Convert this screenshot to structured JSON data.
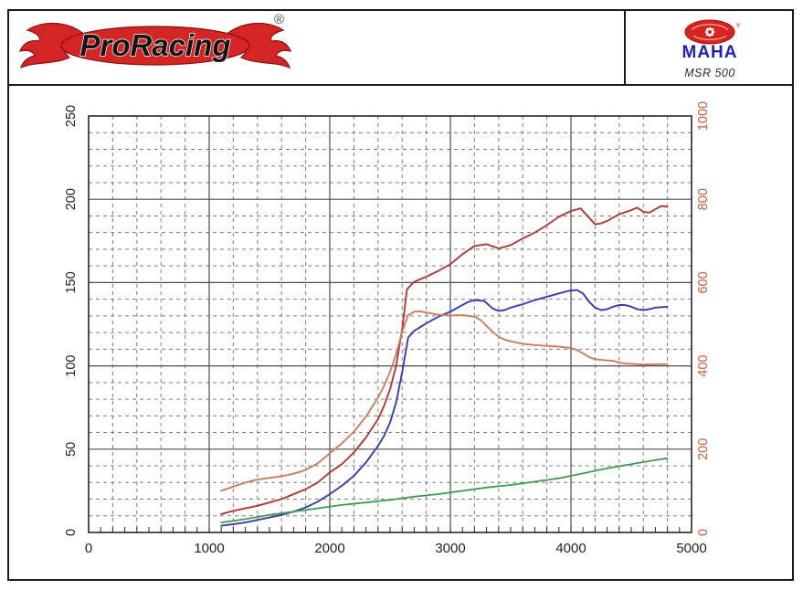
{
  "header": {
    "brand": "ProRacing",
    "registered_mark": "®",
    "device_brand": "MAHA",
    "device_model": "MSR 500"
  },
  "chart_data": {
    "type": "line",
    "title": "",
    "xlabel": "",
    "ylabel_left": "",
    "ylabel_right": "",
    "legend": "none",
    "grid": {
      "major_color": "#4d4d4d",
      "minor_color": "#7d7d7d",
      "minor_dash": "4 4",
      "frame_color": "#262626"
    },
    "x_axis": {
      "min": 0,
      "max": 5000,
      "major_step": 1000,
      "minor_step": 200,
      "tick_step": 100,
      "tick_labels": [
        "0",
        "1000",
        "2000",
        "3000",
        "4000",
        "5000"
      ],
      "color": "#222222"
    },
    "y_left": {
      "min": 0,
      "max": 250,
      "major_step": 50,
      "minor_step": 10,
      "tick_labels": [
        "0",
        "50",
        "100",
        "150",
        "200",
        "250"
      ],
      "color": "#222222"
    },
    "y_right": {
      "min": 0,
      "max": 1000,
      "major_step": 200,
      "tick_labels": [
        "0",
        "200",
        "400",
        "600",
        "800",
        "1000"
      ],
      "color": "#d05a3a"
    },
    "series": [
      {
        "name": "red-curve",
        "axis": "left",
        "color": "#b23737",
        "width": 1.9,
        "points": [
          [
            1100,
            11
          ],
          [
            1200,
            13
          ],
          [
            1300,
            14.5
          ],
          [
            1400,
            16
          ],
          [
            1500,
            18
          ],
          [
            1600,
            20
          ],
          [
            1700,
            23
          ],
          [
            1800,
            26
          ],
          [
            1900,
            30
          ],
          [
            2000,
            36
          ],
          [
            2100,
            41
          ],
          [
            2200,
            48
          ],
          [
            2300,
            57
          ],
          [
            2400,
            68
          ],
          [
            2450,
            76
          ],
          [
            2500,
            86
          ],
          [
            2550,
            100
          ],
          [
            2600,
            122
          ],
          [
            2640,
            146
          ],
          [
            2700,
            150.5
          ],
          [
            2800,
            153.5
          ],
          [
            2900,
            157
          ],
          [
            3000,
            161
          ],
          [
            3100,
            167
          ],
          [
            3200,
            172
          ],
          [
            3300,
            173
          ],
          [
            3400,
            170.5
          ],
          [
            3500,
            172.5
          ],
          [
            3600,
            176.5
          ],
          [
            3700,
            180
          ],
          [
            3800,
            184.5
          ],
          [
            3900,
            189.5
          ],
          [
            4000,
            193
          ],
          [
            4080,
            194.5
          ],
          [
            4150,
            189
          ],
          [
            4200,
            185
          ],
          [
            4250,
            185.5
          ],
          [
            4300,
            187
          ],
          [
            4400,
            191
          ],
          [
            4500,
            193.5
          ],
          [
            4550,
            195
          ],
          [
            4600,
            192.5
          ],
          [
            4650,
            192
          ],
          [
            4700,
            194
          ],
          [
            4750,
            196
          ],
          [
            4800,
            195.5
          ]
        ]
      },
      {
        "name": "blue-curve",
        "axis": "left",
        "color": "#3b3bae",
        "width": 1.9,
        "points": [
          [
            1100,
            4
          ],
          [
            1200,
            5
          ],
          [
            1300,
            6
          ],
          [
            1400,
            7.5
          ],
          [
            1500,
            9
          ],
          [
            1600,
            10.5
          ],
          [
            1700,
            12.5
          ],
          [
            1800,
            15
          ],
          [
            1900,
            18.5
          ],
          [
            2000,
            23
          ],
          [
            2100,
            28
          ],
          [
            2200,
            34
          ],
          [
            2300,
            42
          ],
          [
            2400,
            52
          ],
          [
            2450,
            58
          ],
          [
            2500,
            66
          ],
          [
            2550,
            78
          ],
          [
            2600,
            96
          ],
          [
            2650,
            117
          ],
          [
            2700,
            121
          ],
          [
            2800,
            125.5
          ],
          [
            2900,
            129.5
          ],
          [
            3000,
            132.5
          ],
          [
            3100,
            136.5
          ],
          [
            3150,
            138.5
          ],
          [
            3200,
            139.5
          ],
          [
            3280,
            139
          ],
          [
            3350,
            134.5
          ],
          [
            3400,
            133
          ],
          [
            3450,
            133.5
          ],
          [
            3500,
            135
          ],
          [
            3600,
            137
          ],
          [
            3700,
            139.5
          ],
          [
            3800,
            141.5
          ],
          [
            3900,
            143.5
          ],
          [
            3980,
            145
          ],
          [
            4050,
            145.5
          ],
          [
            4100,
            143.5
          ],
          [
            4150,
            138.5
          ],
          [
            4200,
            135
          ],
          [
            4250,
            133.5
          ],
          [
            4300,
            134
          ],
          [
            4350,
            135.5
          ],
          [
            4400,
            136.5
          ],
          [
            4450,
            136.5
          ],
          [
            4500,
            135.5
          ],
          [
            4550,
            134
          ],
          [
            4600,
            133.5
          ],
          [
            4650,
            134
          ],
          [
            4700,
            135
          ],
          [
            4800,
            135.5
          ]
        ]
      },
      {
        "name": "orange-curve",
        "axis": "right",
        "color": "#cd7c60",
        "width": 1.9,
        "points": [
          [
            1100,
            100
          ],
          [
            1200,
            110
          ],
          [
            1300,
            120
          ],
          [
            1400,
            127
          ],
          [
            1500,
            131
          ],
          [
            1600,
            135
          ],
          [
            1700,
            141
          ],
          [
            1800,
            150
          ],
          [
            1900,
            166
          ],
          [
            2000,
            190
          ],
          [
            2100,
            214
          ],
          [
            2200,
            242
          ],
          [
            2300,
            278
          ],
          [
            2400,
            324
          ],
          [
            2450,
            352
          ],
          [
            2500,
            386
          ],
          [
            2550,
            428
          ],
          [
            2600,
            482
          ],
          [
            2650,
            522
          ],
          [
            2700,
            530
          ],
          [
            2750,
            531
          ],
          [
            2800,
            528
          ],
          [
            2900,
            523
          ],
          [
            3000,
            521
          ],
          [
            3100,
            522
          ],
          [
            3200,
            518
          ],
          [
            3250,
            510
          ],
          [
            3300,
            496
          ],
          [
            3350,
            482
          ],
          [
            3400,
            470
          ],
          [
            3450,
            463
          ],
          [
            3500,
            459
          ],
          [
            3600,
            453
          ],
          [
            3700,
            450
          ],
          [
            3800,
            448
          ],
          [
            3900,
            446
          ],
          [
            4000,
            443
          ],
          [
            4050,
            438
          ],
          [
            4100,
            430
          ],
          [
            4150,
            421
          ],
          [
            4200,
            416
          ],
          [
            4300,
            413
          ],
          [
            4350,
            412
          ],
          [
            4400,
            408
          ],
          [
            4450,
            406
          ],
          [
            4500,
            405
          ],
          [
            4600,
            403
          ],
          [
            4700,
            404
          ],
          [
            4800,
            404
          ]
        ]
      },
      {
        "name": "green-curve",
        "axis": "left",
        "color": "#3f9b51",
        "width": 1.8,
        "points": [
          [
            1100,
            6
          ],
          [
            1300,
            8
          ],
          [
            1500,
            10.5
          ],
          [
            1700,
            12.5
          ],
          [
            1900,
            14.5
          ],
          [
            2100,
            16.5
          ],
          [
            2300,
            18
          ],
          [
            2500,
            19.5
          ],
          [
            2700,
            21.5
          ],
          [
            2900,
            23
          ],
          [
            3100,
            25
          ],
          [
            3300,
            27
          ],
          [
            3500,
            28.5
          ],
          [
            3700,
            30.5
          ],
          [
            3900,
            32.5
          ],
          [
            4100,
            35.5
          ],
          [
            4300,
            38.5
          ],
          [
            4500,
            41
          ],
          [
            4700,
            43.5
          ],
          [
            4800,
            44.5
          ]
        ]
      }
    ]
  }
}
